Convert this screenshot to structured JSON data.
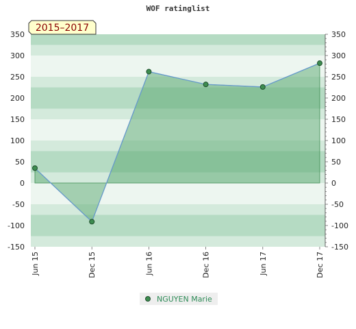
{
  "chart_data": {
    "type": "line",
    "title": "WOF ratinglist",
    "period_label": "2015–2017",
    "x": [
      "Jun 15",
      "Dec 15",
      "Jun 16",
      "Dec 16",
      "Jun 17",
      "Dec 17"
    ],
    "series": [
      {
        "name": "NGUYEN Marie",
        "values": [
          35,
          -91,
          262,
          232,
          226,
          282
        ]
      }
    ],
    "ylim": [
      -150,
      350
    ],
    "y_ticks": [
      "350",
      "300",
      "250",
      "200",
      "150",
      "100",
      "50",
      "0",
      "-50",
      "-100",
      "-150"
    ],
    "y_tick_values": [
      350,
      300,
      250,
      200,
      150,
      100,
      50,
      0,
      -50,
      -100,
      -150
    ],
    "y_axis_both_sides": true,
    "grid": "horizontal bands",
    "legend_position": "bottom-center",
    "colors": {
      "line": "#6699cc",
      "area_fill": "#5aa870",
      "marker_fill": "#3d8c50",
      "marker_stroke": "#1e4d2b",
      "band_dark": "#b5dbc3",
      "band_mid": "#d4eadc",
      "band_light": "#edf6f0",
      "period_box_bg": "#ffffcc",
      "period_text": "#8b0000",
      "legend_text": "#2e8b57"
    }
  }
}
